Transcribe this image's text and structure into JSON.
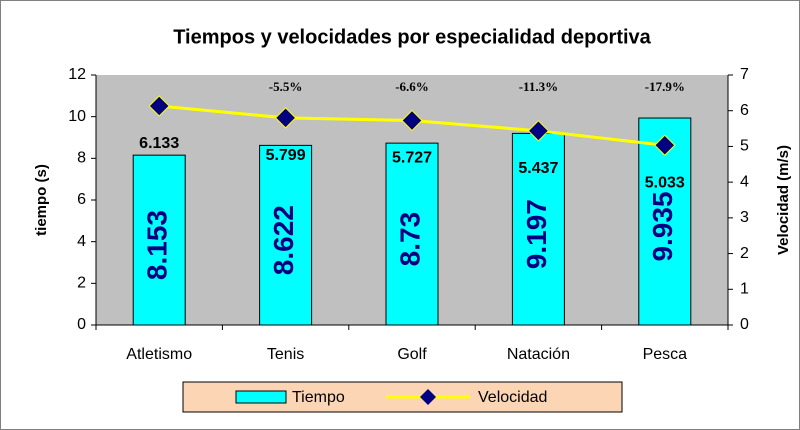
{
  "chart_data": {
    "type": "bar_line",
    "title": "Tiempos y velocidades por especialidad deportiva",
    "categories": [
      "Atletismo",
      "Tenis",
      "Golf",
      "Natación",
      "Pesca"
    ],
    "series": [
      {
        "name": "Tiempo",
        "color": "#00ffff",
        "values": [
          8.153,
          8.622,
          8.73,
          9.197,
          9.935
        ]
      },
      {
        "name": "Velocidad",
        "color": "#ffff00",
        "marker_color": "#000080",
        "axis": "y2",
        "values": [
          6.133,
          5.799,
          5.727,
          5.437,
          5.033
        ]
      }
    ],
    "annotations": [
      null,
      "-5.5%",
      "-6.6%",
      "-11.3%",
      "-17.9%"
    ],
    "ylabel": "tiempo (s)",
    "y2label": "Velocidad (m/s)",
    "ylim": [
      0,
      12
    ],
    "yticks": [
      0,
      2,
      4,
      6,
      8,
      10,
      12
    ],
    "y2lim": [
      0,
      7
    ],
    "y2ticks": [
      0,
      1,
      2,
      3,
      4,
      5,
      6,
      7
    ],
    "plot_background": "#c0c0c0",
    "legend_background": "#fcd5b4",
    "legend": "bottom"
  }
}
